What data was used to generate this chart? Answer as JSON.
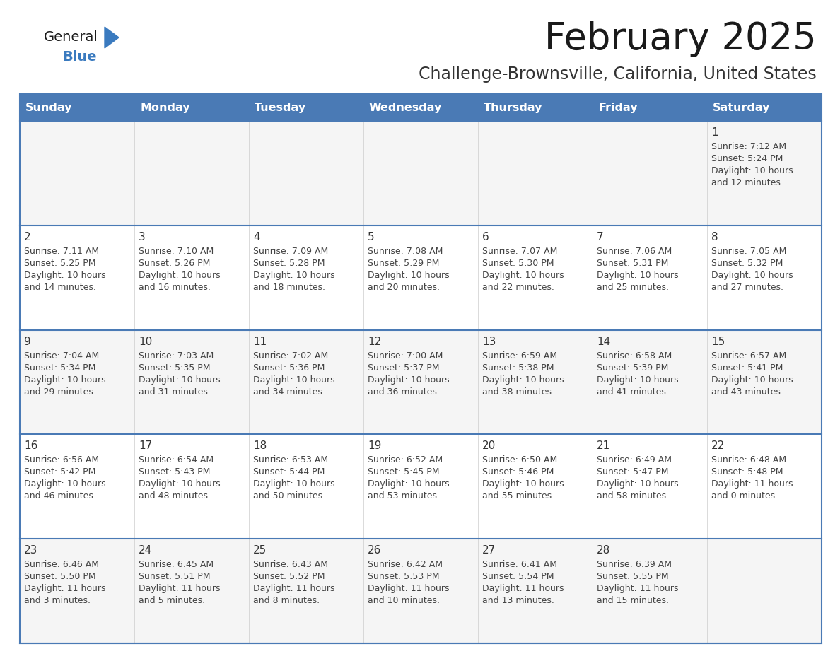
{
  "title": "February 2025",
  "subtitle": "Challenge-Brownsville, California, United States",
  "header_bg": "#4a7ab5",
  "header_text": "#ffffff",
  "days_of_week": [
    "Sunday",
    "Monday",
    "Tuesday",
    "Wednesday",
    "Thursday",
    "Friday",
    "Saturday"
  ],
  "cell_bg": "#ffffff",
  "cell_bg_alt": "#f5f5f5",
  "cell_border_blue": "#4a7ab5",
  "cell_border_light": "#cccccc",
  "day_number_color": "#333333",
  "info_text_color": "#444444",
  "logo_general_color": "#1a1a1a",
  "logo_blue_color": "#3a7abf",
  "logo_triangle_color": "#3a7abf",
  "title_color": "#1a1a1a",
  "subtitle_color": "#333333",
  "calendar_data": [
    [
      null,
      null,
      null,
      null,
      null,
      null,
      {
        "day": 1,
        "sunrise": "7:12 AM",
        "sunset": "5:24 PM",
        "daylight_h": "10 hours",
        "daylight_m": "and 12 minutes."
      }
    ],
    [
      {
        "day": 2,
        "sunrise": "7:11 AM",
        "sunset": "5:25 PM",
        "daylight_h": "10 hours",
        "daylight_m": "and 14 minutes."
      },
      {
        "day": 3,
        "sunrise": "7:10 AM",
        "sunset": "5:26 PM",
        "daylight_h": "10 hours",
        "daylight_m": "and 16 minutes."
      },
      {
        "day": 4,
        "sunrise": "7:09 AM",
        "sunset": "5:28 PM",
        "daylight_h": "10 hours",
        "daylight_m": "and 18 minutes."
      },
      {
        "day": 5,
        "sunrise": "7:08 AM",
        "sunset": "5:29 PM",
        "daylight_h": "10 hours",
        "daylight_m": "and 20 minutes."
      },
      {
        "day": 6,
        "sunrise": "7:07 AM",
        "sunset": "5:30 PM",
        "daylight_h": "10 hours",
        "daylight_m": "and 22 minutes."
      },
      {
        "day": 7,
        "sunrise": "7:06 AM",
        "sunset": "5:31 PM",
        "daylight_h": "10 hours",
        "daylight_m": "and 25 minutes."
      },
      {
        "day": 8,
        "sunrise": "7:05 AM",
        "sunset": "5:32 PM",
        "daylight_h": "10 hours",
        "daylight_m": "and 27 minutes."
      }
    ],
    [
      {
        "day": 9,
        "sunrise": "7:04 AM",
        "sunset": "5:34 PM",
        "daylight_h": "10 hours",
        "daylight_m": "and 29 minutes."
      },
      {
        "day": 10,
        "sunrise": "7:03 AM",
        "sunset": "5:35 PM",
        "daylight_h": "10 hours",
        "daylight_m": "and 31 minutes."
      },
      {
        "day": 11,
        "sunrise": "7:02 AM",
        "sunset": "5:36 PM",
        "daylight_h": "10 hours",
        "daylight_m": "and 34 minutes."
      },
      {
        "day": 12,
        "sunrise": "7:00 AM",
        "sunset": "5:37 PM",
        "daylight_h": "10 hours",
        "daylight_m": "and 36 minutes."
      },
      {
        "day": 13,
        "sunrise": "6:59 AM",
        "sunset": "5:38 PM",
        "daylight_h": "10 hours",
        "daylight_m": "and 38 minutes."
      },
      {
        "day": 14,
        "sunrise": "6:58 AM",
        "sunset": "5:39 PM",
        "daylight_h": "10 hours",
        "daylight_m": "and 41 minutes."
      },
      {
        "day": 15,
        "sunrise": "6:57 AM",
        "sunset": "5:41 PM",
        "daylight_h": "10 hours",
        "daylight_m": "and 43 minutes."
      }
    ],
    [
      {
        "day": 16,
        "sunrise": "6:56 AM",
        "sunset": "5:42 PM",
        "daylight_h": "10 hours",
        "daylight_m": "and 46 minutes."
      },
      {
        "day": 17,
        "sunrise": "6:54 AM",
        "sunset": "5:43 PM",
        "daylight_h": "10 hours",
        "daylight_m": "and 48 minutes."
      },
      {
        "day": 18,
        "sunrise": "6:53 AM",
        "sunset": "5:44 PM",
        "daylight_h": "10 hours",
        "daylight_m": "and 50 minutes."
      },
      {
        "day": 19,
        "sunrise": "6:52 AM",
        "sunset": "5:45 PM",
        "daylight_h": "10 hours",
        "daylight_m": "and 53 minutes."
      },
      {
        "day": 20,
        "sunrise": "6:50 AM",
        "sunset": "5:46 PM",
        "daylight_h": "10 hours",
        "daylight_m": "and 55 minutes."
      },
      {
        "day": 21,
        "sunrise": "6:49 AM",
        "sunset": "5:47 PM",
        "daylight_h": "10 hours",
        "daylight_m": "and 58 minutes."
      },
      {
        "day": 22,
        "sunrise": "6:48 AM",
        "sunset": "5:48 PM",
        "daylight_h": "11 hours",
        "daylight_m": "and 0 minutes."
      }
    ],
    [
      {
        "day": 23,
        "sunrise": "6:46 AM",
        "sunset": "5:50 PM",
        "daylight_h": "11 hours",
        "daylight_m": "and 3 minutes."
      },
      {
        "day": 24,
        "sunrise": "6:45 AM",
        "sunset": "5:51 PM",
        "daylight_h": "11 hours",
        "daylight_m": "and 5 minutes."
      },
      {
        "day": 25,
        "sunrise": "6:43 AM",
        "sunset": "5:52 PM",
        "daylight_h": "11 hours",
        "daylight_m": "and 8 minutes."
      },
      {
        "day": 26,
        "sunrise": "6:42 AM",
        "sunset": "5:53 PM",
        "daylight_h": "11 hours",
        "daylight_m": "and 10 minutes."
      },
      {
        "day": 27,
        "sunrise": "6:41 AM",
        "sunset": "5:54 PM",
        "daylight_h": "11 hours",
        "daylight_m": "and 13 minutes."
      },
      {
        "day": 28,
        "sunrise": "6:39 AM",
        "sunset": "5:55 PM",
        "daylight_h": "11 hours",
        "daylight_m": "and 15 minutes."
      },
      null
    ]
  ]
}
